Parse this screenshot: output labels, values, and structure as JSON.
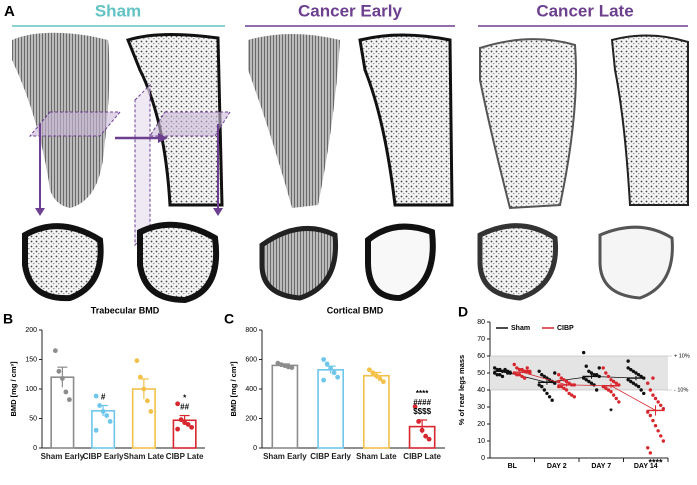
{
  "figure": {
    "panel_a": {
      "label": "A",
      "groups": [
        "Sham",
        "Cancer Early",
        "Cancer Late"
      ]
    }
  },
  "chart_data": [
    {
      "type": "bar",
      "panel_label": "B",
      "title": "Trabecular BMD",
      "y_label": "BMD [mg / cm³]",
      "categories": [
        "Sham Early",
        "CIBP Early",
        "Sham Late",
        "CIBP Late"
      ],
      "colors": [
        "#8c8c8c",
        "#6ec6ea",
        "#f3c04a",
        "#d7262e"
      ],
      "values": [
        120,
        63,
        100,
        47
      ],
      "errors": [
        17,
        9,
        17,
        8
      ],
      "points": [
        [
          165,
          130,
          118,
          95,
          82
        ],
        [
          88,
          72,
          62,
          55,
          45,
          30
        ],
        [
          148,
          120,
          100,
          80,
          62
        ],
        [
          75,
          48,
          43,
          40,
          35,
          32
        ]
      ],
      "annotations": [
        [],
        [
          "#"
        ],
        [],
        [
          "*",
          "##"
        ]
      ],
      "ylim": [
        0,
        200
      ],
      "yticks": [
        0,
        50,
        100,
        150,
        200
      ]
    },
    {
      "type": "bar",
      "panel_label": "C",
      "title": "Cortical BMD",
      "y_label": "BMD [mg / cm³]",
      "categories": [
        "Sham Early",
        "CIBP Early",
        "Sham Late",
        "CIBP Late"
      ],
      "colors": [
        "#8c8c8c",
        "#6ec6ea",
        "#f3c04a",
        "#d7262e"
      ],
      "values": [
        560,
        530,
        490,
        145
      ],
      "errors": [
        10,
        25,
        22,
        45
      ],
      "points": [
        [
          575,
          565,
          558,
          550,
          545
        ],
        [
          600,
          570,
          540,
          510,
          480,
          460
        ],
        [
          530,
          510,
          490,
          470,
          450
        ],
        [
          280,
          180,
          120,
          80,
          60
        ]
      ],
      "annotations": [
        [],
        [],
        [],
        [
          "****",
          "####",
          "$$$$"
        ]
      ],
      "ylim": [
        0,
        800
      ],
      "yticks": [
        0,
        200,
        400,
        600,
        800
      ]
    },
    {
      "type": "strip",
      "panel_label": "D",
      "y_label": "% of rear legs mass",
      "categories": [
        "BL",
        "DAY 2",
        "DAY 7",
        "DAY 14"
      ],
      "series": [
        {
          "name": "Sham",
          "color": "#111111",
          "means": [
            51,
            44.5,
            48,
            47
          ],
          "errors": [
            0.5,
            1.4,
            1.4,
            1.3
          ],
          "points": [
            [
              53,
              52,
              52,
              51,
              51,
              50,
              50,
              50,
              49,
              49,
              48,
              52,
              51,
              50
            ],
            [
              51,
              49,
              48,
              47,
              46,
              45,
              44,
              43,
              42,
              40,
              38,
              36,
              34,
              50
            ],
            [
              62,
              54,
              51,
              50,
              49,
              49,
              48,
              47,
              46,
              45,
              44,
              43,
              40,
              53
            ],
            [
              57,
              52,
              51,
              50,
              49,
              48,
              47,
              46,
              45,
              44,
              43,
              42,
              40,
              38,
              53
            ]
          ],
          "annotations": [
            [],
            [],
            [],
            []
          ]
        },
        {
          "name": "CIBP",
          "color": "#d7262e",
          "means": [
            50.5,
            43,
            42.5,
            28
          ],
          "errors": [
            0.6,
            1,
            1.4,
            3
          ],
          "points": [
            [
              55,
              53,
              52,
              52,
              51,
              51,
              50,
              50,
              49,
              49,
              48,
              47,
              53,
              51
            ],
            [
              49,
              47,
              46,
              45,
              44,
              43,
              43,
              42,
              42,
              41,
              40,
              38,
              37,
              36,
              45
            ],
            [
              53,
              50,
              48,
              46,
              45,
              44,
              43,
              42,
              41,
              40,
              39,
              37,
              35,
              33
            ],
            [
              44,
              40,
              37,
              35,
              33,
              31,
              29,
              27,
              25,
              22,
              19,
              16,
              13,
              10,
              6,
              3,
              47
            ]
          ],
          "annotations": [
            [],
            [],
            [
              "*"
            ],
            [
              "****"
            ]
          ]
        }
      ],
      "band_ticks": [
        {
          "value": 60,
          "label": "+ 10%"
        },
        {
          "value": 40,
          "label": "- 10%"
        }
      ],
      "ylim": [
        0,
        80
      ],
      "yticks": [
        0,
        10,
        20,
        30,
        40,
        50,
        60,
        70,
        80
      ]
    }
  ]
}
